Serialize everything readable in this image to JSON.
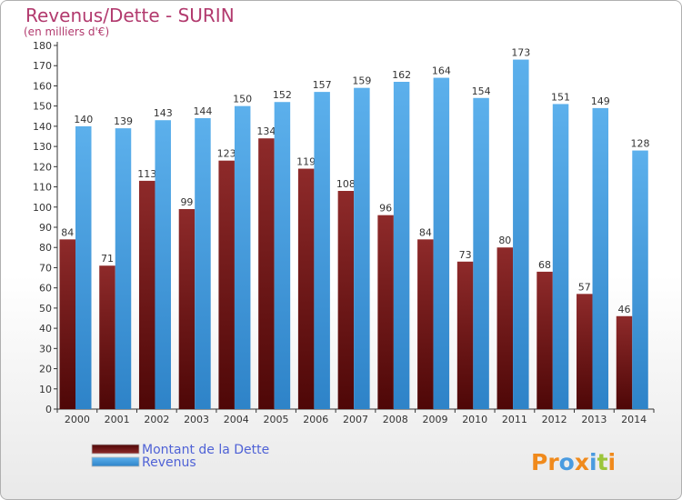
{
  "chart_data": {
    "type": "bar",
    "title": "Revenus/Dette - SURIN",
    "subtitle": "(en milliers d'€)",
    "categories": [
      "2000",
      "2001",
      "2002",
      "2003",
      "2004",
      "2005",
      "2006",
      "2007",
      "2008",
      "2009",
      "2010",
      "2011",
      "2012",
      "2013",
      "2014"
    ],
    "series": [
      {
        "name": "Montant de la Dette",
        "color": "#7a1a1a",
        "values": [
          84,
          71,
          113,
          99,
          123,
          134,
          119,
          108,
          96,
          84,
          73,
          80,
          68,
          57,
          46
        ]
      },
      {
        "name": "Revenus",
        "color": "#4aa3e6",
        "values": [
          140,
          139,
          143,
          144,
          150,
          152,
          157,
          159,
          162,
          164,
          154,
          173,
          151,
          149,
          128
        ]
      }
    ],
    "ylim": [
      0,
      180
    ],
    "yticks": [
      0,
      10,
      20,
      30,
      40,
      50,
      60,
      70,
      80,
      90,
      100,
      110,
      120,
      130,
      140,
      150,
      160,
      170,
      180
    ],
    "grid": false,
    "legend_position": "bottom-left"
  },
  "brand": {
    "name": "Proxiti",
    "letters": [
      {
        "ch": "P",
        "color": "#f08a1c"
      },
      {
        "ch": "r",
        "color": "#f08a1c"
      },
      {
        "ch": "o",
        "color": "#4a9be0"
      },
      {
        "ch": "x",
        "color": "#f08a1c"
      },
      {
        "ch": "i",
        "color": "#4a9be0"
      },
      {
        "ch": "t",
        "color": "#9cc53a"
      },
      {
        "ch": "i",
        "color": "#f08a1c"
      }
    ]
  }
}
